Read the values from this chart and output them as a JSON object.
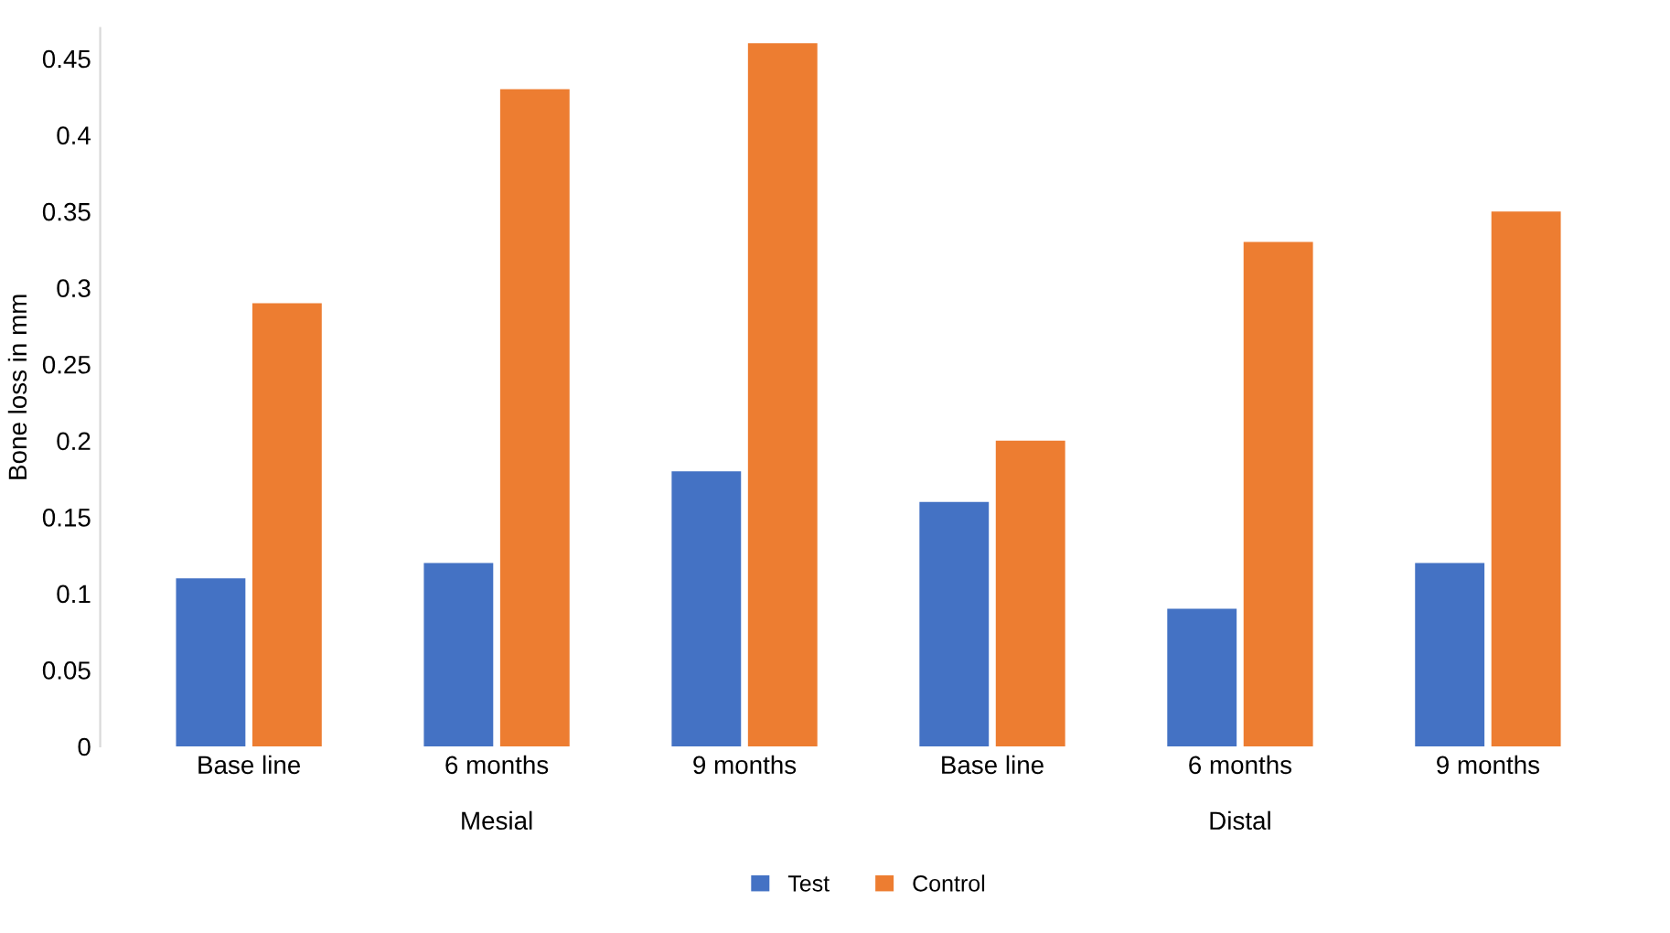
{
  "chart_data": {
    "type": "bar",
    "ylabel": "Bone loss in mm",
    "categories": [
      "Base line",
      "6 months",
      "9 months",
      "Base line",
      "6 months",
      "9 months"
    ],
    "series": [
      {
        "name": "Test",
        "color": "#4472c4",
        "values": [
          0.11,
          0.12,
          0.18,
          0.16,
          0.09,
          0.12
        ]
      },
      {
        "name": "Control",
        "color": "#ed7d31",
        "values": [
          0.29,
          0.43,
          0.46,
          0.2,
          0.33,
          0.35
        ]
      }
    ],
    "annotations": [
      "Mesial",
      "Distal"
    ],
    "ylim": [
      0,
      0.47
    ],
    "yticks": [
      0,
      0.05,
      0.1,
      0.15,
      0.2,
      0.25,
      0.3,
      0.35,
      0.4,
      0.45
    ],
    "grid": false,
    "legend": "bottom"
  }
}
